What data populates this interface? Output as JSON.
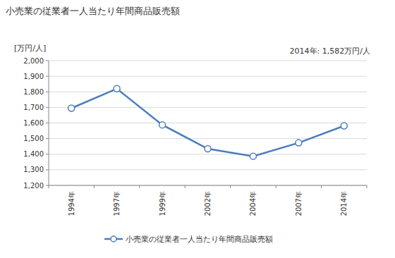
{
  "chart_data": {
    "type": "line",
    "title": "小売業の従業者一人当たり年間商品販売額",
    "y_label": "[万円/人]",
    "annotations": [
      "2014年: 1,582万円/人"
    ],
    "categories": [
      "1994年",
      "1997年",
      "1999年",
      "2002年",
      "2004年",
      "2007年",
      "2014年"
    ],
    "series": [
      {
        "name": "小売業の従業者一人当たり年間商品販売額",
        "color": "#4a7ebb",
        "values": [
          1695,
          1820,
          1588,
          1435,
          1387,
          1473,
          1582
        ]
      }
    ],
    "ylim": [
      1200,
      2000
    ],
    "yticks": [
      {
        "value": 1200,
        "label": "1,200"
      },
      {
        "value": 1300,
        "label": "1,300"
      },
      {
        "value": 1400,
        "label": "1,400"
      },
      {
        "value": 1500,
        "label": "1,500"
      },
      {
        "value": 1600,
        "label": "1,600"
      },
      {
        "value": 1700,
        "label": "1,700"
      },
      {
        "value": 1800,
        "label": "1,800"
      },
      {
        "value": 1900,
        "label": "1,900"
      },
      {
        "value": 2000,
        "label": "2,000"
      }
    ],
    "grid": true,
    "marker": "circle",
    "legend": "bottom"
  }
}
